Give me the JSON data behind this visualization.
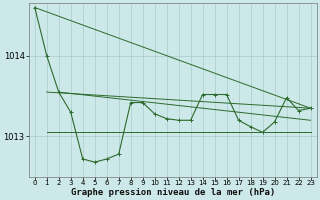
{
  "background_color": "#cce8e8",
  "grid_color": "#aacccc",
  "line_color": "#2d6a2d",
  "title": "Graphe pression niveau de la mer (hPa)",
  "title_fontsize": 6.5,
  "ylim": [
    1012.5,
    1014.65
  ],
  "yticks": [
    1013,
    1014
  ],
  "ytick_fontsize": 6,
  "xlim": [
    -0.5,
    23.5
  ],
  "xticks": [
    0,
    1,
    2,
    3,
    4,
    5,
    6,
    7,
    8,
    9,
    10,
    11,
    12,
    13,
    14,
    15,
    16,
    17,
    18,
    19,
    20,
    21,
    22,
    23
  ],
  "xtick_fontsize": 5,
  "main_y": [
    1014.6,
    1014.0,
    1013.55,
    1013.3,
    1012.72,
    1012.68,
    1012.72,
    1012.78,
    1013.42,
    1013.42,
    1013.28,
    1013.22,
    1013.2,
    1013.2,
    1013.52,
    1013.52,
    1013.52,
    1013.2,
    1013.12,
    1013.05,
    1013.18,
    1013.48,
    1013.32,
    1013.35
  ],
  "trend1_x": [
    0,
    23
  ],
  "trend1_y": [
    1014.6,
    1013.35
  ],
  "trend2_x": [
    1,
    23
  ],
  "trend2_y": [
    1013.55,
    1013.35
  ],
  "trend3_x": [
    2,
    23
  ],
  "trend3_y": [
    1013.55,
    1013.2
  ],
  "trend4_x": [
    1,
    23
  ],
  "trend4_y": [
    1013.05,
    1013.05
  ]
}
